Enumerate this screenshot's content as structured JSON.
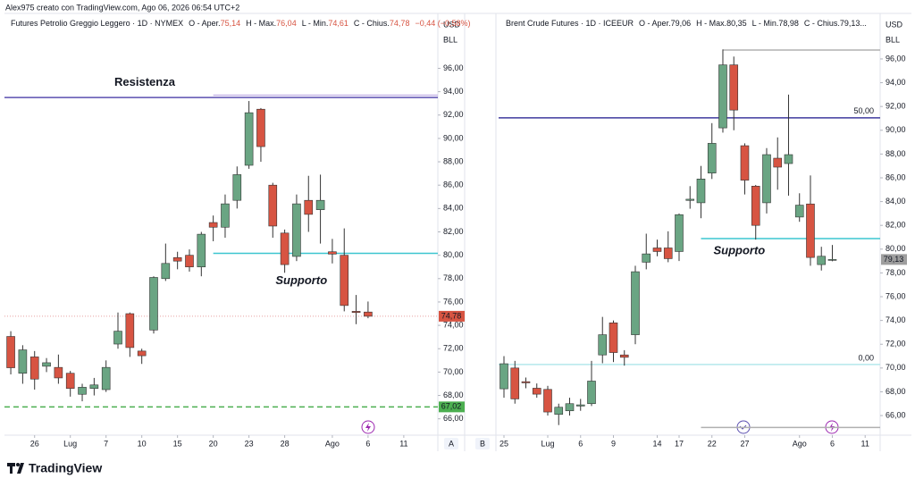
{
  "credit": "Alex975 creato con TradingView.com, Ago 06, 2026 06:54 UTC+2",
  "brand": "TradingView",
  "pane_labels": [
    "A",
    "B"
  ],
  "chart_data": [
    {
      "type": "candlestick",
      "legend": {
        "name": "Futures Petrolio Greggio Leggero · 1D · NYMEX",
        "items": [
          {
            "label": "O - Aper.",
            "value": "75,14"
          },
          {
            "label": "H - Max.",
            "value": "76,04"
          },
          {
            "label": "L - Min.",
            "value": "74,61"
          },
          {
            "label": "C - Chius.",
            "value": "74,78"
          }
        ],
        "change": "−0,44 (−0,58%)",
        "value_color": "#d75442"
      },
      "currency": "USD",
      "unit": "BLL",
      "up_color": "#6aa583",
      "down_color": "#d75442",
      "open": [
        73.05,
        69.9,
        71.3,
        70.5,
        70.4,
        69.9,
        68.1,
        68.6,
        68.5,
        72.4,
        75,
        71.8,
        73.6,
        78,
        79.8,
        80,
        79,
        82.8,
        82.4,
        84.7,
        87.7,
        92.5,
        86,
        81.9,
        79.9,
        84.7,
        83.9,
        80.3,
        80,
        75.2,
        75.14
      ],
      "high": [
        73.5,
        72.3,
        71.8,
        71.2,
        71.5,
        70.1,
        69,
        69.5,
        71,
        75.1,
        75.1,
        72,
        78.2,
        81,
        80.3,
        80.5,
        82,
        83.4,
        85.2,
        87.6,
        93.2,
        92.6,
        86.2,
        82.2,
        85.2,
        86.8,
        86.9,
        81.4,
        82.3,
        76.6,
        76.04
      ],
      "low": [
        69.8,
        69,
        68.5,
        70,
        69,
        67.9,
        67.5,
        68,
        68.3,
        72,
        71.3,
        70.7,
        73.3,
        77.8,
        78.8,
        78.6,
        78.2,
        81.2,
        81.5,
        84,
        87.4,
        88,
        81.5,
        78.5,
        79.5,
        82,
        81,
        79.3,
        75.2,
        74.1,
        74.61
      ],
      "close": [
        70.37,
        71.9,
        69.4,
        70.8,
        69.5,
        68.6,
        68.7,
        68.9,
        70.4,
        73.5,
        72.1,
        71.4,
        78.1,
        79.3,
        79.5,
        79,
        81.8,
        82.4,
        84.4,
        86.9,
        92.2,
        89.3,
        82.5,
        79.2,
        84.4,
        83.5,
        84.7,
        80.1,
        75.7,
        75.1,
        74.78
      ],
      "xlim": [
        -0.53,
        35.86
      ],
      "xticks": [
        {
          "value": 2,
          "label": "26"
        },
        {
          "value": 5,
          "label": "Lug"
        },
        {
          "value": 8,
          "label": "7"
        },
        {
          "value": 11,
          "label": "10"
        },
        {
          "value": 14,
          "label": "15"
        },
        {
          "value": 17,
          "label": "20"
        },
        {
          "value": 20,
          "label": "23"
        },
        {
          "value": 23,
          "label": "28"
        },
        {
          "value": 27,
          "label": "Ago"
        },
        {
          "value": 30,
          "label": "6"
        },
        {
          "value": 33,
          "label": "11"
        }
      ],
      "ylim": [
        64.6,
        100.7
      ],
      "yticks": [
        {
          "value": 66,
          "label": "66,00"
        },
        {
          "value": 68,
          "label": "68,00"
        },
        {
          "value": 70,
          "label": "70,00"
        },
        {
          "value": 72,
          "label": "72,00"
        },
        {
          "value": 74,
          "label": "74,00"
        },
        {
          "value": 76,
          "label": "76,00"
        },
        {
          "value": 78,
          "label": "78,00"
        },
        {
          "value": 80,
          "label": "80,00"
        },
        {
          "value": 82,
          "label": "82,00"
        },
        {
          "value": 84,
          "label": "84,00"
        },
        {
          "value": 86,
          "label": "86,00"
        },
        {
          "value": 88,
          "label": "88,00"
        },
        {
          "value": 90,
          "label": "90,00"
        },
        {
          "value": 92,
          "label": "92,00"
        },
        {
          "value": 94,
          "label": "94,00"
        },
        {
          "value": 96,
          "label": "96,00"
        }
      ],
      "lines": [
        {
          "value": 93.5,
          "color": "#5b4fb0",
          "label": "Resistenza",
          "label_color": "#a64bbf",
          "label_x": 11.25,
          "label_y": 94.78
        },
        {
          "value": 93.7,
          "color": "#c8b8e8",
          "start": 17
        },
        {
          "value": 80.16,
          "color": "#3cc6d0",
          "start": 17,
          "label": "Supporto",
          "label_color": "#3cc6d0",
          "label_x": 24.4,
          "label_y": 77.8
        },
        {
          "value": 67.02,
          "color": "#4caf50",
          "dashed": true
        },
        {
          "value": 74.78,
          "color": "#e8a0a0",
          "dotted": true
        }
      ],
      "price_labels": [
        {
          "value": 74.78,
          "label": "74,78",
          "color": "#d75442"
        },
        {
          "value": 67.02,
          "label": "67,02",
          "color": "#4caf50"
        }
      ]
    },
    {
      "type": "candlestick",
      "legend": {
        "name": "Brent Crude Futures · 1D · ICEEUR",
        "items": [
          {
            "label": "O - Aper.",
            "value": "79,06"
          },
          {
            "label": "H - Max.",
            "value": "80,35"
          },
          {
            "label": "L - Min.",
            "value": "78,98"
          },
          {
            "label": "C - Chius.",
            "value": "79,13..."
          }
        ],
        "value_color": "#131722"
      },
      "currency": "USD",
      "unit": "BLL",
      "up_color": "#6aa583",
      "down_color": "#d75442",
      "open": [
        68.25,
        70,
        68.85,
        68.3,
        68.2,
        66.1,
        66.4,
        66.8,
        67,
        71.1,
        73.8,
        71.1,
        72.8,
        78.9,
        80.1,
        80.1,
        79.8,
        84.1,
        83.9,
        86.4,
        90.2,
        95.5,
        88.7,
        85.3,
        83.9,
        87.65,
        87.2,
        82.7,
        83.8,
        78.7,
        79.06
      ],
      "high": [
        71,
        70.6,
        69.2,
        68.7,
        68.5,
        67,
        67.5,
        67.4,
        70.6,
        74.3,
        74,
        71.5,
        78.6,
        81.3,
        80.8,
        81.5,
        83,
        85.3,
        87,
        90.6,
        96.8,
        96.2,
        88.9,
        85.4,
        88.5,
        89.4,
        93,
        84.7,
        86.2,
        80.2,
        80.35
      ],
      "low": [
        67.5,
        67,
        68.3,
        67.5,
        66,
        65.2,
        66,
        66.4,
        66.8,
        70.4,
        70.5,
        70.2,
        72,
        78.3,
        79.4,
        78.9,
        79,
        83.4,
        82.6,
        85.9,
        89.8,
        90,
        84.6,
        80.8,
        83,
        85,
        84.5,
        82.3,
        78.6,
        78.2,
        78.98
      ],
      "close": [
        70.36,
        67.4,
        68.75,
        67.8,
        66.3,
        66.7,
        67,
        66.9,
        68.9,
        72.8,
        71.3,
        70.9,
        78.1,
        79.6,
        79.8,
        79.2,
        82.9,
        84.2,
        85.9,
        88.9,
        95.5,
        91.7,
        85.8,
        82,
        87.95,
        86.9,
        87.95,
        83.7,
        79.3,
        79.4,
        79.13
      ],
      "xlim": [
        -0.49,
        34.37
      ],
      "xticks": [
        {
          "value": 0,
          "label": "25"
        },
        {
          "value": 4,
          "label": "Lug"
        },
        {
          "value": 7,
          "label": "6"
        },
        {
          "value": 10,
          "label": "9"
        },
        {
          "value": 14,
          "label": "14"
        },
        {
          "value": 16,
          "label": "17"
        },
        {
          "value": 19,
          "label": "22"
        },
        {
          "value": 22,
          "label": "27"
        },
        {
          "value": 27,
          "label": "Ago"
        },
        {
          "value": 30,
          "label": "6"
        },
        {
          "value": 33,
          "label": "11"
        }
      ],
      "ylim": [
        64.35,
        99.83
      ],
      "yticks": [
        {
          "value": 66,
          "label": "66,00"
        },
        {
          "value": 68,
          "label": "68,00"
        },
        {
          "value": 70,
          "label": "70,00"
        },
        {
          "value": 72,
          "label": "72,00"
        },
        {
          "value": 74,
          "label": "74,00"
        },
        {
          "value": 76,
          "label": "76,00"
        },
        {
          "value": 78,
          "label": "78,00"
        },
        {
          "value": 80,
          "label": "80,00"
        },
        {
          "value": 82,
          "label": "82,00"
        },
        {
          "value": 84,
          "label": "84,00"
        },
        {
          "value": 86,
          "label": "86,00"
        },
        {
          "value": 88,
          "label": "88,00"
        },
        {
          "value": 90,
          "label": "90,00"
        },
        {
          "value": 92,
          "label": "92,00"
        },
        {
          "value": 94,
          "label": "94,00"
        },
        {
          "value": 96,
          "label": "96,00"
        }
      ],
      "lines": [
        {
          "value": 91.04,
          "color": "#3f3a9e",
          "label": "50,00",
          "label_color": "#5b4fb0",
          "label_x": 33.8,
          "label_y": 91.6,
          "label_anchor": "end"
        },
        {
          "value": 80.89,
          "color": "#3cc6d0",
          "start": 18,
          "label": "Supporto",
          "label_color": "#3cc6d0",
          "label_x": 21.5,
          "label_y": 79.83
        },
        {
          "value": 70.3,
          "color": "#b4e8ec",
          "label": "0,00",
          "label_color": "#b4e8ec",
          "label_x": 33.8,
          "label_y": 70.8,
          "label_anchor": "end"
        },
        {
          "value": 96.75,
          "color": "#b0b0b0",
          "start": 20
        },
        {
          "value": 65.0,
          "color": "#b0b0b0",
          "start": 18
        }
      ],
      "price_labels": [
        {
          "value": 79.13,
          "label": "79,13",
          "color": "#9e9e9e"
        }
      ]
    }
  ]
}
